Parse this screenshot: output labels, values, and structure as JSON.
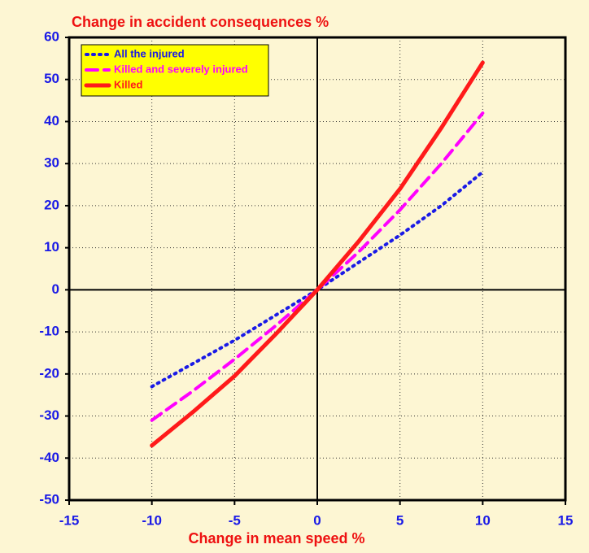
{
  "chart_data": {
    "type": "line",
    "title": "Change in accident consequences %",
    "x_label": "Change in mean speed %",
    "x": [
      -10,
      -7.5,
      -5,
      -2.5,
      0,
      2.5,
      5,
      7.5,
      10
    ],
    "series": [
      {
        "name": "All the injured",
        "color": "#1a1ae6",
        "style": "dotted",
        "values": [
          -23,
          -17.5,
          -12,
          -6,
          0,
          6.5,
          13,
          20,
          28
        ]
      },
      {
        "name": "Killed and severely injured",
        "color": "#ff00ff",
        "style": "dashed",
        "values": [
          -31,
          -24,
          -16.5,
          -8.5,
          0,
          9,
          19,
          30,
          42
        ]
      },
      {
        "name": "Killed",
        "color": "#ff1a1a",
        "style": "solid",
        "values": [
          -37,
          -29,
          -20.5,
          -10.5,
          0,
          11.5,
          24,
          38.5,
          54
        ]
      }
    ],
    "xlim": [
      -15,
      15
    ],
    "xticks": [
      -15,
      -10,
      -5,
      0,
      5,
      10,
      15
    ],
    "ylim": [
      -50,
      60
    ],
    "yticks": [
      -50,
      -40,
      -30,
      -20,
      -10,
      0,
      10,
      20,
      30,
      40,
      50,
      60
    ],
    "grid": true,
    "legend": "upper left"
  }
}
